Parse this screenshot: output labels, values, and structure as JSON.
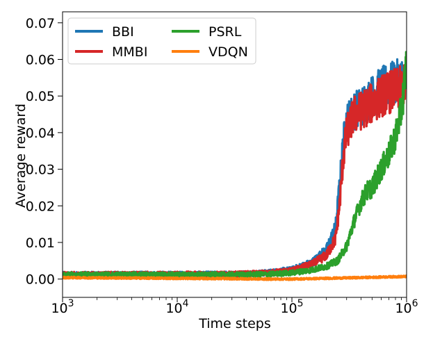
{
  "chart_data": {
    "type": "line",
    "xscale": "log",
    "xlabel": "Time steps",
    "ylabel": "Average reward",
    "xlim": [
      1000,
      1000000
    ],
    "ylim": [
      -0.005,
      0.073
    ],
    "x_ticks": [
      {
        "value": 1000,
        "base": "10",
        "exp": "3"
      },
      {
        "value": 10000,
        "base": "10",
        "exp": "4"
      },
      {
        "value": 100000,
        "base": "10",
        "exp": "5"
      },
      {
        "value": 1000000,
        "base": "10",
        "exp": "6"
      }
    ],
    "y_ticks": [
      {
        "value": 0.0,
        "label": "0.00"
      },
      {
        "value": 0.01,
        "label": "0.01"
      },
      {
        "value": 0.02,
        "label": "0.02"
      },
      {
        "value": 0.03,
        "label": "0.03"
      },
      {
        "value": 0.04,
        "label": "0.04"
      },
      {
        "value": 0.05,
        "label": "0.05"
      },
      {
        "value": 0.06,
        "label": "0.06"
      },
      {
        "value": 0.07,
        "label": "0.07"
      }
    ],
    "legend_position": "top-left",
    "series": [
      {
        "name": "BBI",
        "color": "#1f77b4",
        "noise": 0.0016,
        "points": [
          [
            1000,
            0.0012
          ],
          [
            10000,
            0.0013
          ],
          [
            30000,
            0.0013
          ],
          [
            60000,
            0.0017
          ],
          [
            100000,
            0.0025
          ],
          [
            150000,
            0.0045
          ],
          [
            200000,
            0.008
          ],
          [
            240000,
            0.014
          ],
          [
            260000,
            0.025
          ],
          [
            280000,
            0.037
          ],
          [
            300000,
            0.043
          ],
          [
            350000,
            0.046
          ],
          [
            400000,
            0.047
          ],
          [
            500000,
            0.05
          ],
          [
            600000,
            0.052
          ],
          [
            700000,
            0.053
          ],
          [
            850000,
            0.054
          ],
          [
            1000000,
            0.055
          ]
        ]
      },
      {
        "name": "MMBI",
        "color": "#d62728",
        "noise": 0.0016,
        "points": [
          [
            1000,
            0.0012
          ],
          [
            10000,
            0.0013
          ],
          [
            30000,
            0.0013
          ],
          [
            60000,
            0.0016
          ],
          [
            100000,
            0.0022
          ],
          [
            150000,
            0.004
          ],
          [
            200000,
            0.0065
          ],
          [
            240000,
            0.011
          ],
          [
            260000,
            0.02
          ],
          [
            280000,
            0.033
          ],
          [
            300000,
            0.04
          ],
          [
            350000,
            0.045
          ],
          [
            400000,
            0.046
          ],
          [
            500000,
            0.048
          ],
          [
            600000,
            0.05
          ],
          [
            700000,
            0.051
          ],
          [
            850000,
            0.052
          ],
          [
            1000000,
            0.053
          ]
        ]
      },
      {
        "name": "PSRL",
        "color": "#2ca02c",
        "noise": 0.0014,
        "points": [
          [
            1000,
            0.0012
          ],
          [
            10000,
            0.0012
          ],
          [
            30000,
            0.0012
          ],
          [
            60000,
            0.0013
          ],
          [
            100000,
            0.0017
          ],
          [
            150000,
            0.0025
          ],
          [
            200000,
            0.0035
          ],
          [
            250000,
            0.005
          ],
          [
            300000,
            0.009
          ],
          [
            350000,
            0.016
          ],
          [
            400000,
            0.021
          ],
          [
            450000,
            0.024
          ],
          [
            500000,
            0.025
          ],
          [
            600000,
            0.03
          ],
          [
            700000,
            0.034
          ],
          [
            800000,
            0.039
          ],
          [
            900000,
            0.046
          ],
          [
            950000,
            0.052
          ],
          [
            1000000,
            0.06
          ]
        ]
      },
      {
        "name": "VDQN",
        "color": "#ff7f0e",
        "noise": 0.00025,
        "points": [
          [
            1000,
            0.0004
          ],
          [
            10000,
            0.0002
          ],
          [
            30000,
            0.0001
          ],
          [
            60000,
            0.0
          ],
          [
            100000,
            0.0
          ],
          [
            200000,
            0.0002
          ],
          [
            400000,
            0.0004
          ],
          [
            700000,
            0.0006
          ],
          [
            1000000,
            0.0007
          ]
        ]
      }
    ]
  }
}
